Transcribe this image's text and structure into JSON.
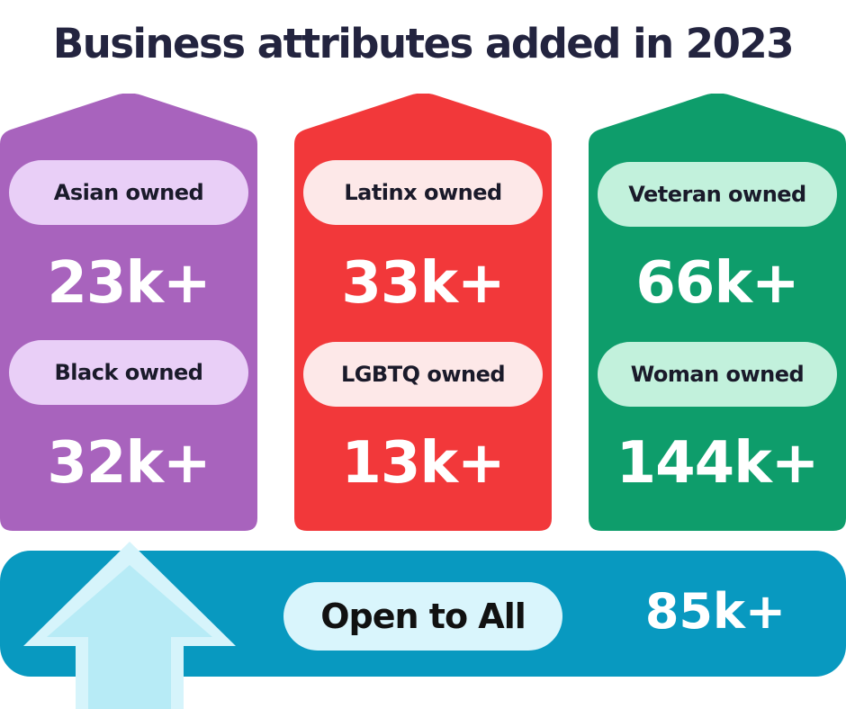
{
  "title": "Business attributes added in 2023",
  "columns": [
    {
      "color": "#a863bd",
      "pill_color": "#e9cff7",
      "items": [
        {
          "label": "Asian owned",
          "value": "23k+"
        },
        {
          "label": "Black owned",
          "value": "32k+"
        }
      ]
    },
    {
      "color": "#f2383a",
      "pill_color": "#fde8e8",
      "items": [
        {
          "label": "Latinx owned",
          "value": "33k+"
        },
        {
          "label": "LGBTQ owned",
          "value": "13k+"
        }
      ]
    },
    {
      "color": "#0e9d6b",
      "pill_color": "#c2f1dc",
      "items": [
        {
          "label": "Veteran owned",
          "value": "66k+"
        },
        {
          "label": "Woman owned",
          "value": "144k+"
        }
      ]
    }
  ],
  "banner": {
    "color": "#0899c0",
    "label": "Open to All",
    "value": "85k+",
    "icon": "up-arrow-icon"
  }
}
